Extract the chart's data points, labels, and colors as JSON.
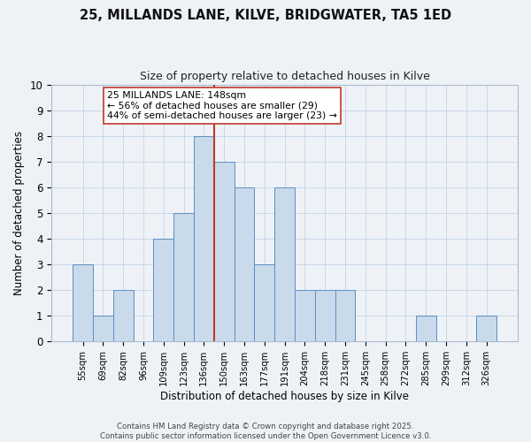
{
  "title": "25, MILLANDS LANE, KILVE, BRIDGWATER, TA5 1ED",
  "subtitle": "Size of property relative to detached houses in Kilve",
  "xlabel": "Distribution of detached houses by size in Kilve",
  "ylabel": "Number of detached properties",
  "bin_labels": [
    "55sqm",
    "69sqm",
    "82sqm",
    "96sqm",
    "109sqm",
    "123sqm",
    "136sqm",
    "150sqm",
    "163sqm",
    "177sqm",
    "191sqm",
    "204sqm",
    "218sqm",
    "231sqm",
    "245sqm",
    "258sqm",
    "272sqm",
    "285sqm",
    "299sqm",
    "312sqm",
    "326sqm"
  ],
  "bar_values": [
    3,
    1,
    2,
    0,
    4,
    5,
    8,
    7,
    6,
    3,
    6,
    2,
    2,
    2,
    0,
    0,
    0,
    1,
    0,
    0,
    1
  ],
  "bar_color": "#c9daea",
  "bar_edge_color": "#5b8ec4",
  "vline_bin_index": 7,
  "vline_color": "#c0392b",
  "annotation_line1": "25 MILLANDS LANE: 148sqm",
  "annotation_line2": "← 56% of detached houses are smaller (29)",
  "annotation_line3": "44% of semi-detached houses are larger (23) →",
  "annotation_box_facecolor": "white",
  "annotation_box_edgecolor": "#c0392b",
  "ylim": [
    0,
    10
  ],
  "yticks": [
    0,
    1,
    2,
    3,
    4,
    5,
    6,
    7,
    8,
    9,
    10
  ],
  "grid_color": "#c8d8e8",
  "background_color": "#eef2f7",
  "title_fontsize": 10.5,
  "subtitle_fontsize": 9,
  "footnote": "Contains HM Land Registry data © Crown copyright and database right 2025.\nContains public sector information licensed under the Open Government Licence v3.0."
}
